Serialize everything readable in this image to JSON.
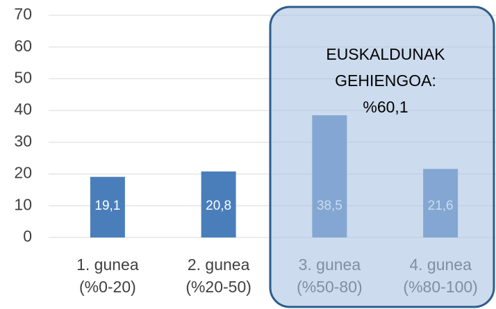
{
  "chart_data": {
    "type": "bar",
    "categories": [
      [
        "1. gunea",
        "(%0-20)"
      ],
      [
        "2. gunea",
        "(%20-50)"
      ],
      [
        "3. gunea",
        "(%50-80)"
      ],
      [
        "4. gunea",
        "(%80-100)"
      ]
    ],
    "values": [
      19.1,
      20.8,
      38.5,
      21.6
    ],
    "value_labels": [
      "19,1",
      "20,8",
      "38,5",
      "21,6"
    ],
    "color": "#4a7ebb",
    "ylim": [
      0,
      70
    ],
    "yticks": [
      0,
      10,
      20,
      30,
      40,
      50,
      60,
      70
    ],
    "grid": true,
    "annotation": [
      "EUSKALDUNAK",
      "GEHIENGOA:",
      "%60,1"
    ]
  }
}
